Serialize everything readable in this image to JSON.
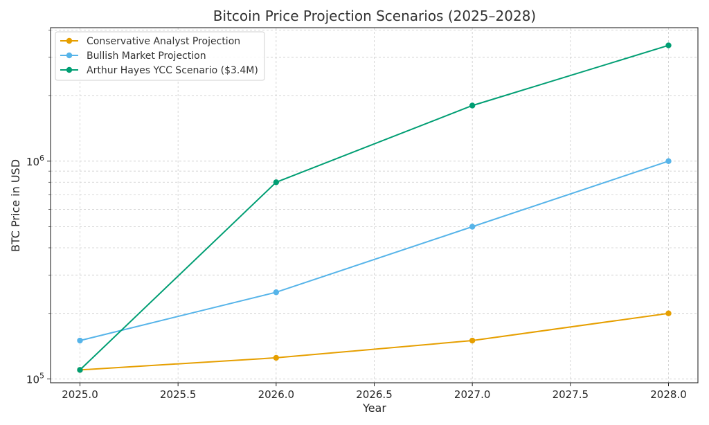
{
  "chart_data": {
    "type": "line",
    "title": "Bitcoin Price Projection Scenarios (2025–2028)",
    "xlabel": "Year",
    "ylabel": "BTC Price in USD",
    "x": [
      2025,
      2026,
      2027,
      2028
    ],
    "xlim": [
      2024.85,
      2028.15
    ],
    "ylim": [
      96000,
      4100000
    ],
    "yscale": "log",
    "xticks": [
      2025.0,
      2025.5,
      2026.0,
      2026.5,
      2027.0,
      2027.5,
      2028.0
    ],
    "xtick_labels": [
      "2025.0",
      "2025.5",
      "2026.0",
      "2026.5",
      "2027.0",
      "2027.5",
      "2028.0"
    ],
    "yticks": [
      {
        "value": 100000,
        "base": "10",
        "exp": "5"
      },
      {
        "value": 1000000,
        "base": "10",
        "exp": "6"
      }
    ],
    "grid": true,
    "legend_position": "top-left",
    "series": [
      {
        "name": "Conservative Analyst Projection",
        "color": "#E69F00",
        "values": [
          110000,
          125000,
          150000,
          200000
        ]
      },
      {
        "name": "Bullish Market Projection",
        "color": "#56B4E9",
        "values": [
          150000,
          250000,
          500000,
          1000000
        ]
      },
      {
        "name": "Arthur Hayes YCC Scenario ($3.4M)",
        "color": "#009E73",
        "values": [
          110000,
          800000,
          1800000,
          3400000
        ]
      }
    ]
  }
}
